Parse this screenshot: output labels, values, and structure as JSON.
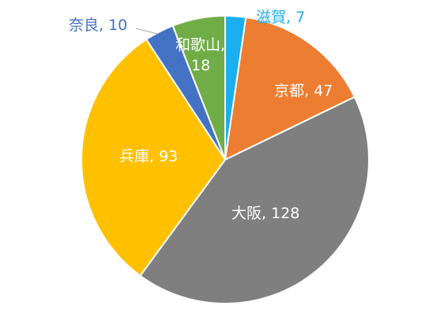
{
  "chart_data": {
    "type": "pie",
    "slices": [
      {
        "label": "滋賀",
        "value": 7,
        "color": "#1AAFEF"
      },
      {
        "label": "京都",
        "value": 47,
        "color": "#ED7D31"
      },
      {
        "label": "大阪",
        "value": 128,
        "color": "#7F7F7F"
      },
      {
        "label": "兵庫",
        "value": 93,
        "color": "#FFC000"
      },
      {
        "label": "奈良",
        "value": 10,
        "color": "#4472C4"
      },
      {
        "label": "和歌山",
        "value": 18,
        "color": "#70AD47"
      }
    ],
    "data_labels": [
      "滋賀, 7",
      "京都, 47",
      "大阪, 128",
      "兵庫, 93",
      "奈良, 10",
      "和歌山,",
      "18"
    ],
    "legend": "none"
  }
}
